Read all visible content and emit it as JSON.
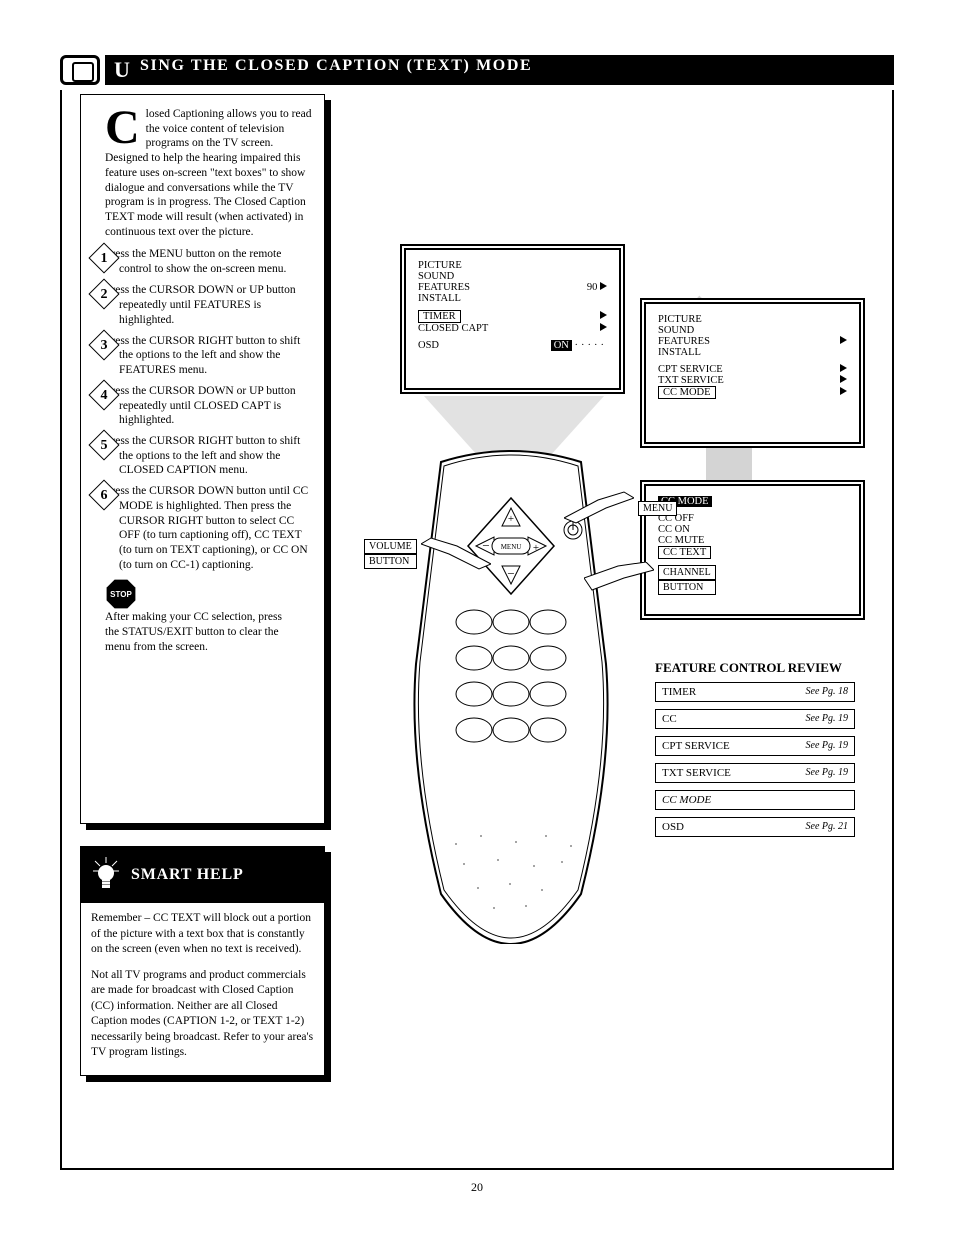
{
  "page": {
    "number": "20"
  },
  "title": {
    "initial": "U",
    "rest_caps": "SING THE",
    "tail_first": "C",
    "tail_rest": "LOSED",
    "tail2_first": "C",
    "tail2_rest": "APTION",
    "sub": "(TEXT) MODE"
  },
  "sidebar": {
    "drop": "C",
    "intro": "losed Captioning allows you to read the voice content of television programs on the TV screen. Designed to help the hearing impaired this feature uses on-screen \"text boxes\" to show dialogue and conversations while the TV program is in progress. The Closed Caption TEXT mode will result (when activated) in continuous text over the picture.",
    "steps": [
      {
        "n": "1",
        "text": "Press the            MENU button on the remote control to show the on-screen menu."
      },
      {
        "n": "2",
        "text": "Press the CURSOR DOWN or UP button repeatedly until FEATURES is highlighted."
      },
      {
        "n": "3",
        "text": "Press the CURSOR RIGHT   button to shift the options to the left and show the FEATURES menu."
      },
      {
        "n": "4",
        "text": "Press the CURSOR DOWN or UP button repeatedly until CLOSED CAPT is highlighted."
      },
      {
        "n": "5",
        "text": "Press the CURSOR RIGHT   button to shift the options to the left and show the CLOSED CAPTION menu."
      },
      {
        "n": "6",
        "text": "Press the CURSOR DOWN button until CC MODE is highlighted. Then press the CURSOR RIGHT  button to select CC OFF (to turn captioning off), CC TEXT (to turn on TEXT captioning), or CC ON (to turn on CC-1) captioning."
      }
    ],
    "stop": "     After making your CC selection, press the STATUS/EXIT button to clear the menu from the screen."
  },
  "tip": {
    "title_first": "S",
    "title_rest1": "MART",
    "title_first2": "H",
    "title_rest2": "ELP",
    "body": [
      "Remember – CC TEXT will block out a portion of the picture with a text box that is constantly on the screen (even when no text is received).",
      "Not all TV programs and product commercials are made for broadcast with Closed Caption (CC) information. Neither are all Closed Caption modes (CAPTION 1-2, or TEXT 1-2) necessarily being broadcast. Refer to your area's TV program listings."
    ]
  },
  "osd1": {
    "rows": [
      {
        "label": "PICTURE",
        "arrow": false
      },
      {
        "label": "SOUND",
        "arrow": false
      },
      {
        "label": "FEATURES",
        "arrow": true,
        "mark": "90"
      },
      {
        "label": "INSTALL",
        "arrow": false
      }
    ],
    "sub_rows": [
      {
        "label": "TIMER",
        "arrow": true,
        "boxed": true
      },
      {
        "label": "CLOSED CAPT",
        "arrow": true
      }
    ],
    "osd_label": "OSD",
    "osd_on": "ON"
  },
  "osd2": {
    "rows": [
      {
        "label": "PICTURE"
      },
      {
        "label": "SOUND"
      },
      {
        "label": "FEATURES",
        "arrow": true
      },
      {
        "label": "INSTALL"
      }
    ],
    "sub_rows": [
      {
        "label": "CPT SERVICE",
        "arrow": true
      },
      {
        "label": "TXT SERVICE",
        "arrow": true
      },
      {
        "label": "CC MODE",
        "arrow": true,
        "boxed": true
      }
    ]
  },
  "osd3": {
    "hl": "CC MODE",
    "opts": [
      "CC OFF",
      "CC ON",
      "CC MUTE"
    ],
    "sel": "CC TEXT"
  },
  "fingers": {
    "f1": {
      "label": "MENU"
    },
    "f2": {
      "label": "VOLUME",
      "label2": "BUTTON"
    },
    "f3": {
      "label": "CHANNEL",
      "label2": "BUTTON"
    }
  },
  "review": {
    "title_first": "F",
    "title_rest1": "EATURE",
    "title_first2": "C",
    "title_rest2": "ONTROL",
    "title_first3": "R",
    "title_rest3": "EVIEW",
    "rows": [
      {
        "name": "TIMER",
        "sect": "See Pg. 18"
      },
      {
        "name": "CC",
        "sect": "See Pg. 19"
      },
      {
        "name": "CPT SERVICE",
        "sect": "See Pg. 19"
      },
      {
        "name": "TXT SERVICE",
        "sect": "See Pg. 19"
      },
      {
        "name": "CC MODE",
        "italic": true
      },
      {
        "name": "OSD",
        "sect": "See Pg. 21"
      }
    ]
  },
  "colors": {
    "swoosh": "#d0d0d0",
    "cone": "#d8d8d8"
  }
}
